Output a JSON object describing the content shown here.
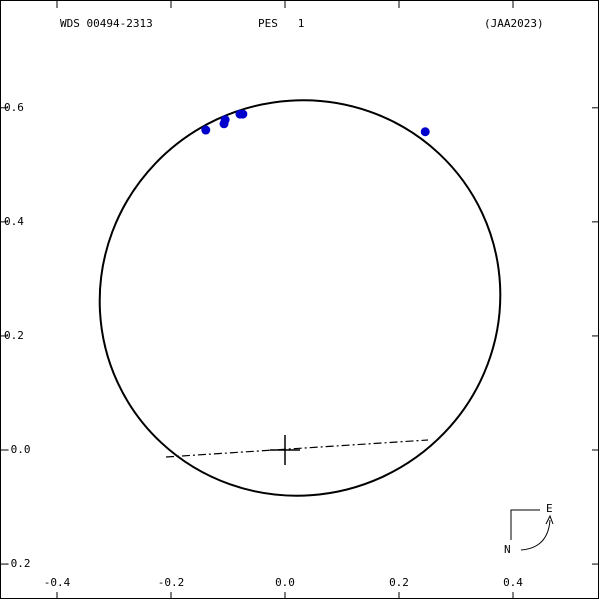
{
  "chart_data": {
    "type": "scatter",
    "header": {
      "id": "WDS 00494-2313",
      "name": "PES   1",
      "ref": "(JAA2023)"
    },
    "compass": {
      "east": "E",
      "north": "N"
    },
    "x": [
      -0.139,
      -0.105,
      -0.107,
      -0.079,
      -0.074,
      0.246
    ],
    "values": [
      0.561,
      0.579,
      0.572,
      0.589,
      0.589,
      0.558
    ],
    "color": "#0000cc",
    "xlim": [
      -0.5,
      0.5526
    ],
    "ylim": [
      -0.263,
      0.789
    ],
    "xticks": [
      -0.4,
      -0.2,
      {
        "value": 0,
        "label": "0.0"
      },
      0.2,
      0.4
    ],
    "yticks": [
      -0.2,
      {
        "value": 0,
        "label": "-0.0"
      },
      0.2,
      0.4,
      0.6
    ]
  }
}
